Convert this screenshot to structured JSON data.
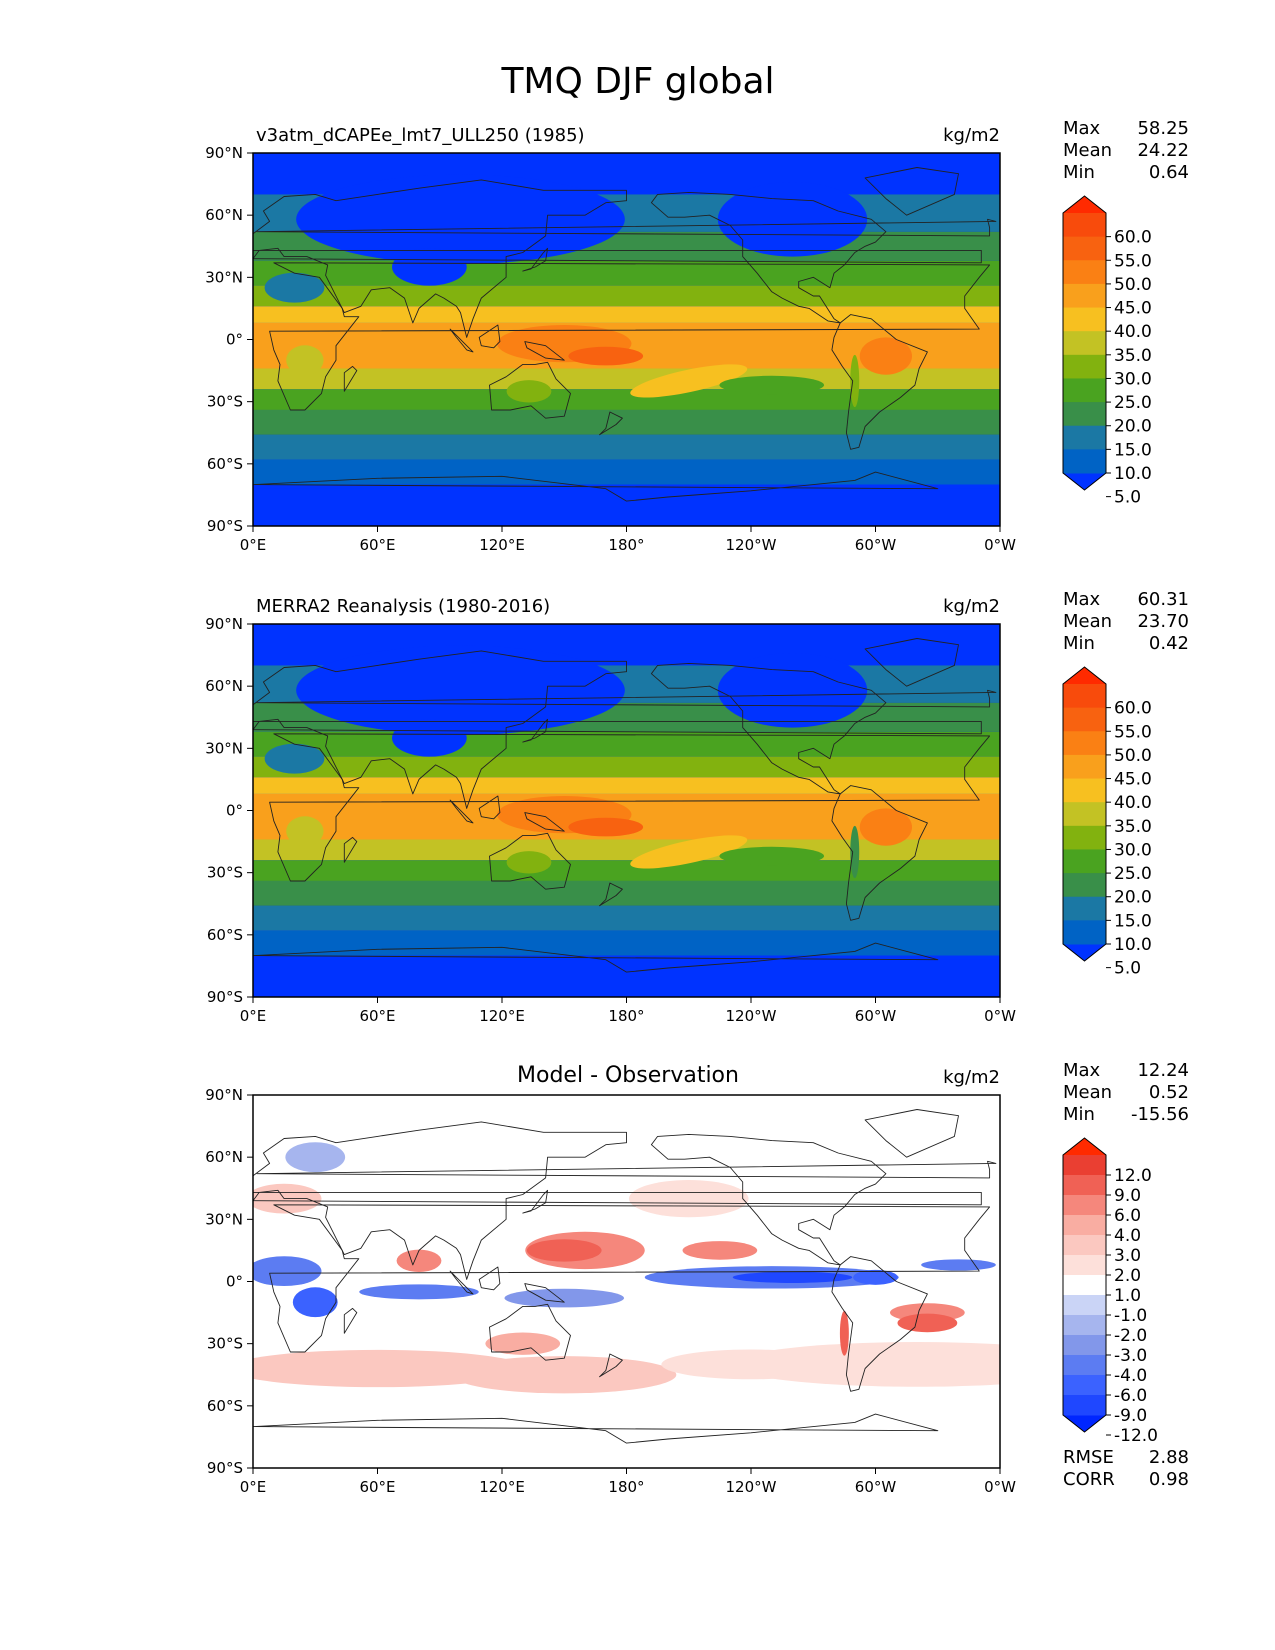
{
  "figure": {
    "title": "TMQ DJF global"
  },
  "axes": {
    "lat_ticks": [
      "90°N",
      "60°N",
      "30°N",
      "0°",
      "30°S",
      "60°S",
      "90°S"
    ],
    "lon_ticks": [
      "0°E",
      "60°E",
      "120°E",
      "180°",
      "120°W",
      "60°W",
      "0°W"
    ]
  },
  "colors": {
    "field": [
      "#0033ff",
      "#0063c5",
      "#1b78a4",
      "#398f49",
      "#4aa320",
      "#82b20f",
      "#c3c224",
      "#f7c020",
      "#f9a01c",
      "#fa8014",
      "#f86210",
      "#f84b0c",
      "#ff2a00"
    ],
    "diff": [
      "#0026ff",
      "#1f47ff",
      "#3b62ff",
      "#5c7cf2",
      "#8297ea",
      "#a6b5ee",
      "#cad4f6",
      "#ffffff",
      "#fde0da",
      "#fbc8c0",
      "#f9ada2",
      "#f5877c",
      "#f06155",
      "#ea3f32",
      "#ff2a00"
    ],
    "land": "#222222"
  },
  "panels": [
    {
      "subtitle": "v3atm_dCAPEe_lmt7_ULL250 (1985)",
      "units": "kg/m2",
      "stats": {
        "max_label": "Max",
        "max": "58.25",
        "mean_label": "Mean",
        "mean": "24.22",
        "min_label": "Min",
        "min": "0.64"
      },
      "colorbar_labels": [
        "60.0",
        "55.0",
        "50.0",
        "45.0",
        "40.0",
        "35.0",
        "30.0",
        "25.0",
        "20.0",
        "15.0",
        "10.0",
        "5.0"
      ]
    },
    {
      "subtitle": "MERRA2 Reanalysis (1980-2016)",
      "units": "kg/m2",
      "stats": {
        "max_label": "Max",
        "max": "60.31",
        "mean_label": "Mean",
        "mean": "23.70",
        "min_label": "Min",
        "min": "0.42"
      },
      "colorbar_labels": [
        "60.0",
        "55.0",
        "50.0",
        "45.0",
        "40.0",
        "35.0",
        "30.0",
        "25.0",
        "20.0",
        "15.0",
        "10.0",
        "5.0"
      ]
    },
    {
      "subtitle": "Model - Observation",
      "units": "kg/m2",
      "stats": {
        "max_label": "Max",
        "max": "12.24",
        "mean_label": "Mean",
        "mean": "0.52",
        "min_label": "Min",
        "min": "-15.56"
      },
      "colorbar_labels": [
        "12.0",
        "9.0",
        "6.0",
        "4.0",
        "3.0",
        "2.0",
        "1.0",
        "-1.0",
        "-2.0",
        "-3.0",
        "-4.0",
        "-6.0",
        "-9.0",
        "-12.0"
      ],
      "extra": {
        "rmse_label": "RMSE",
        "rmse": "2.88",
        "corr_label": "CORR",
        "corr": "0.98"
      }
    }
  ]
}
